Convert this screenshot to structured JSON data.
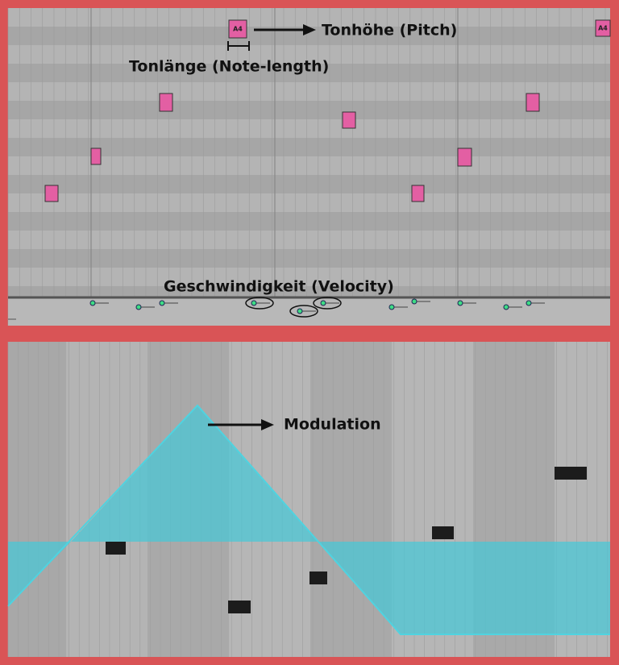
{
  "notes": [
    {
      "label": "A4"
    },
    {
      "label": "A4"
    }
  ],
  "annotations": {
    "pitch": "Tonhöhe (Pitch)",
    "note_length": "Tonlänge (Note-length)",
    "velocity": "Geschwindigkeit (Velocity)",
    "modulation": "Modulation"
  }
}
